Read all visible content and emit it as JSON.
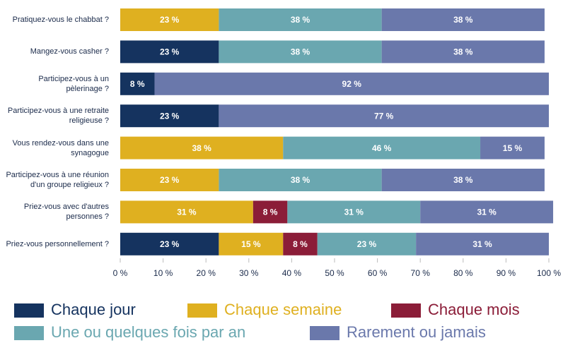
{
  "chart_data": {
    "type": "stacked-bar-horizontal",
    "categories": [
      "Pratiquez-vous le chabbat ?",
      "Mangez-vous casher ?",
      "Participez-vous à un\npèlerinage ?",
      "Participez-vous à une retraite\nreligieuse ?",
      "Vous rendez-vous dans une\nsynagogue",
      "Participez-vous à une réunion\nd'un groupe religieux ?",
      "Priez-vous avec d'autres\npersonnes ?",
      "Priez-vous personnellement ?"
    ],
    "series": [
      {
        "name": "Chaque jour",
        "color": "#15335f",
        "values": [
          null,
          23,
          8,
          23,
          null,
          null,
          null,
          23
        ],
        "value_labels": [
          null,
          "23 %",
          "8 %",
          "23 %",
          null,
          null,
          null,
          "23 %"
        ]
      },
      {
        "name": "Chaque semaine",
        "color": "#dfb020",
        "values": [
          23,
          null,
          null,
          null,
          38,
          23,
          31,
          15
        ],
        "value_labels": [
          "23 %",
          null,
          null,
          null,
          "38 %",
          "23 %",
          "31 %",
          "15 %"
        ]
      },
      {
        "name": "Chaque mois",
        "color": "#8b1d38",
        "values": [
          null,
          null,
          null,
          null,
          null,
          null,
          8,
          8
        ],
        "value_labels": [
          null,
          null,
          null,
          null,
          null,
          null,
          "8 %",
          "8 %"
        ]
      },
      {
        "name": "Une ou quelques fois par an",
        "color": "#6aa7b0",
        "values": [
          38,
          38,
          null,
          null,
          46,
          38,
          31,
          23
        ],
        "value_labels": [
          "38 %",
          "38 %",
          null,
          null,
          "46 %",
          "38 %",
          "31 %",
          "23 %"
        ]
      },
      {
        "name": "Rarement ou jamais",
        "color": "#6a78ab",
        "values": [
          38,
          38,
          92,
          77,
          15,
          38,
          31,
          31
        ],
        "value_labels": [
          "38 %",
          "38 %",
          "92 %",
          "77 %",
          "15 %",
          "38 %",
          "31 %",
          "31 %"
        ]
      }
    ],
    "xlim": [
      0,
      100
    ],
    "xticks": [
      {
        "value": 0,
        "label": "0 %"
      },
      {
        "value": 10,
        "label": "10 %"
      },
      {
        "value": 20,
        "label": "20 %"
      },
      {
        "value": 30,
        "label": "30 %"
      },
      {
        "value": 40,
        "label": "40 %"
      },
      {
        "value": 50,
        "label": "50 %"
      },
      {
        "value": 60,
        "label": "60 %"
      },
      {
        "value": 70,
        "label": "70 %"
      },
      {
        "value": 80,
        "label": "80 %"
      },
      {
        "value": 90,
        "label": "90 %"
      },
      {
        "value": 100,
        "label": "100 %"
      }
    ],
    "grid": false,
    "legend": "bottom"
  }
}
